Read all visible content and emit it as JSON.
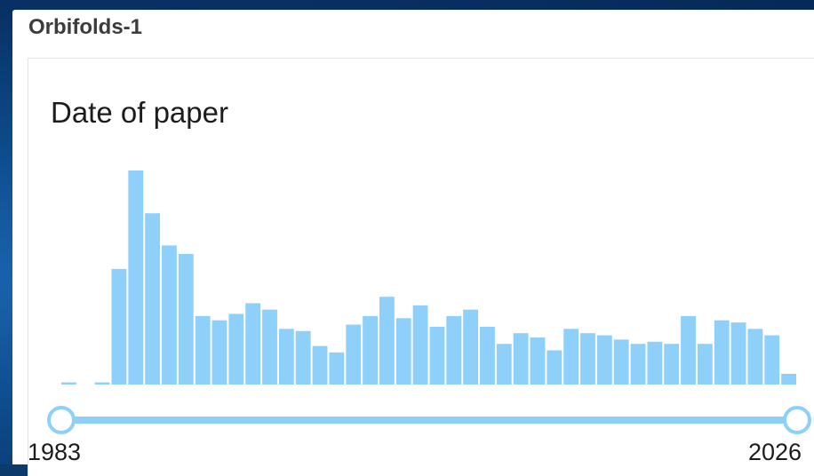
{
  "window": {
    "title": "Orbifolds-1"
  },
  "panel": {
    "title": "Date of paper"
  },
  "slider": {
    "min_label": "1983",
    "max_label": "2026",
    "min_value": 1983,
    "max_value": 2026
  },
  "colors": {
    "bar": "#8fd0fb",
    "handle_border": "#8fd0fb",
    "background": "#ffffff"
  },
  "chart_data": {
    "type": "bar",
    "title": "Date of paper",
    "xlabel": "",
    "ylabel": "",
    "x": [
      1983,
      1984,
      1985,
      1986,
      1987,
      1988,
      1989,
      1990,
      1991,
      1992,
      1993,
      1994,
      1995,
      1996,
      1997,
      1998,
      1999,
      2000,
      2001,
      2002,
      2003,
      2004,
      2005,
      2006,
      2007,
      2008,
      2009,
      2010,
      2011,
      2012,
      2013,
      2014,
      2015,
      2016,
      2017,
      2018,
      2019,
      2020,
      2021,
      2022,
      2023,
      2024,
      2025,
      2026
    ],
    "values": [
      1,
      0,
      1,
      54,
      100,
      80,
      65,
      61,
      32,
      30,
      33,
      38,
      35,
      26,
      25,
      18,
      15,
      28,
      32,
      41,
      31,
      37,
      27,
      32,
      35,
      27,
      19,
      24,
      22,
      16,
      26,
      24,
      23,
      21,
      19,
      20,
      19,
      32,
      19,
      30,
      29,
      26,
      23,
      5
    ],
    "xlim": [
      1983,
      2026
    ],
    "grid": false,
    "legend": "none"
  }
}
